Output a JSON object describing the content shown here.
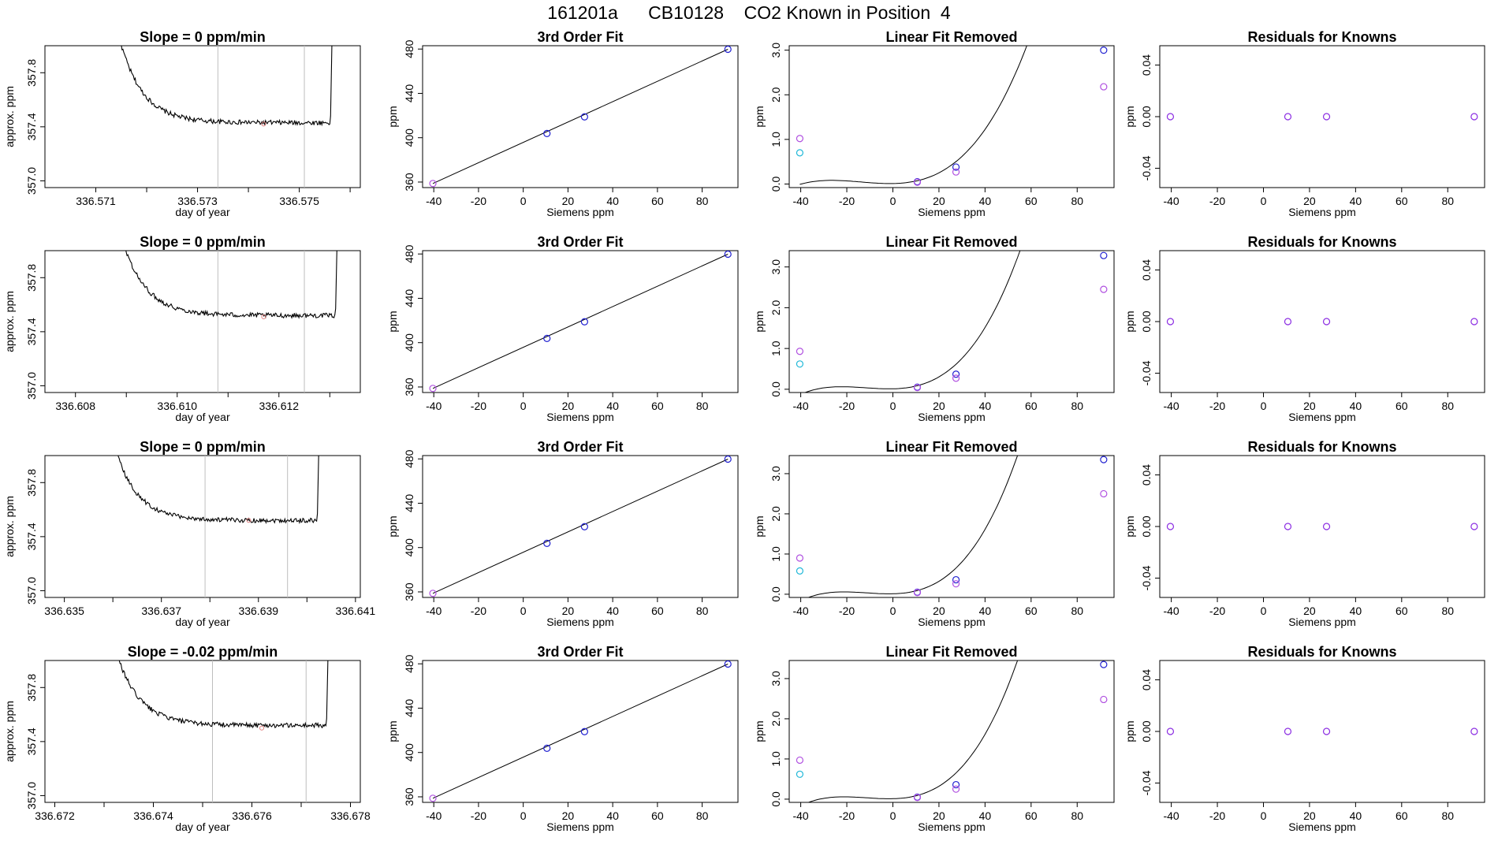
{
  "title": "161201a      CB10128    CO2 Known in Position  4",
  "colors": {
    "trace": "#000000",
    "vline": "#bebebe",
    "fit_line": "#000000",
    "blue": "#2020d0",
    "violet": "#b050e0",
    "cyan": "#20b8d8",
    "resid": "#8a2be2",
    "highlight": "#e08080"
  },
  "chart_data": [
    {
      "row": 1,
      "trace": {
        "type": "line",
        "title": "Slope =  0  ppm/min",
        "xlabel": "day of year",
        "ylabel": "approx. ppm",
        "xlim": [
          336.57,
          336.5762
        ],
        "ylim": [
          356.95,
          358.0
        ],
        "xticks": [
          336.571,
          336.572,
          336.573,
          336.574,
          336.575,
          336.576
        ],
        "xtick_labels": [
          "336.571",
          "",
          "336.573",
          "",
          "336.575",
          ""
        ],
        "yticks": [
          357.0,
          357.4,
          357.8
        ],
        "ytick_labels": [
          "357.0",
          "357.4",
          "357.8"
        ],
        "vlines": [
          336.5734,
          336.5751
        ],
        "t_start": 336.5711,
        "t_end": 336.5756,
        "plateau": 357.43,
        "marker": [
          336.5743,
          357.42
        ]
      },
      "fit": {
        "type": "scatter",
        "title": "3rd Order Fit",
        "xlabel": "Siemens ppm",
        "ylabel": "ppm",
        "xlim": [
          -45,
          96
        ],
        "ylim": [
          355,
          483
        ],
        "xticks": [
          -40,
          -20,
          0,
          20,
          40,
          60,
          80
        ],
        "yticks": [
          360,
          400,
          440,
          480
        ],
        "points": [
          {
            "x": -40.4,
            "y": 358.7,
            "color": "violet"
          },
          {
            "x": 10.6,
            "y": 403.8,
            "color": "blue"
          },
          {
            "x": 27.4,
            "y": 418.8,
            "color": "blue"
          },
          {
            "x": 91.5,
            "y": 479.8,
            "color": "blue"
          }
        ]
      },
      "linfit": {
        "type": "scatter",
        "title": "Linear Fit Removed",
        "xlabel": "Siemens ppm",
        "ylabel": "ppm",
        "xlim": [
          -45,
          96
        ],
        "ylim": [
          -0.08,
          3.1
        ],
        "xticks": [
          -40,
          -20,
          0,
          20,
          40,
          60,
          80
        ],
        "yticks": [
          0.0,
          1.0,
          2.0,
          3.0
        ],
        "ytick_labels": [
          "0.0",
          "1.0",
          "2.0",
          "3.0"
        ],
        "curve": {
          "a": 0.00034,
          "b": 0.0009,
          "vertex": -1.3
        },
        "points": [
          {
            "x": -40.4,
            "y": 1.02,
            "color": "violet"
          },
          {
            "x": -40.4,
            "y": 0.7,
            "color": "cyan"
          },
          {
            "x": 10.6,
            "y": 0.05,
            "color": "blue"
          },
          {
            "x": 10.6,
            "y": 0.04,
            "color": "violet"
          },
          {
            "x": 27.4,
            "y": 0.38,
            "color": "blue"
          },
          {
            "x": 27.4,
            "y": 0.27,
            "color": "violet"
          },
          {
            "x": 91.5,
            "y": 3.0,
            "color": "blue"
          },
          {
            "x": 91.5,
            "y": 2.18,
            "color": "violet"
          }
        ]
      },
      "resid": {
        "type": "scatter",
        "title": "Residuals for Knowns",
        "xlabel": "Siemens ppm",
        "ylabel": "ppm",
        "xlim": [
          -45,
          96
        ],
        "ylim": [
          -0.055,
          0.055
        ],
        "xticks": [
          -40,
          -20,
          0,
          20,
          40,
          60,
          80
        ],
        "yticks": [
          -0.04,
          0.0,
          0.04
        ],
        "ytick_labels": [
          "-0.04",
          "0.00",
          "0.04"
        ],
        "points": [
          {
            "x": -40.4,
            "y": 0.0,
            "color": "resid"
          },
          {
            "x": 10.6,
            "y": 0.0,
            "color": "resid"
          },
          {
            "x": 27.4,
            "y": 0.0,
            "color": "resid"
          },
          {
            "x": 91.5,
            "y": 0.0,
            "color": "resid"
          }
        ]
      }
    },
    {
      "row": 2,
      "trace": {
        "type": "line",
        "title": "Slope =  0  ppm/min",
        "xlabel": "day of year",
        "ylabel": "approx. ppm",
        "xlim": [
          336.6074,
          336.6136
        ],
        "ylim": [
          356.95,
          358.0
        ],
        "xticks": [
          336.608,
          336.609,
          336.61,
          336.611,
          336.612,
          336.613
        ],
        "xtick_labels": [
          "336.608",
          "",
          "336.610",
          "",
          "336.612",
          ""
        ],
        "yticks": [
          357.0,
          357.4,
          357.8
        ],
        "ytick_labels": [
          "357.0",
          "357.4",
          "357.8"
        ],
        "vlines": [
          336.6108,
          336.6125
        ],
        "t_start": 336.6085,
        "t_end": 336.6131,
        "plateau": 357.52,
        "marker": [
          336.6117,
          357.51
        ]
      },
      "fit": {
        "type": "scatter",
        "title": "3rd Order Fit",
        "xlabel": "Siemens ppm",
        "ylabel": "ppm",
        "xlim": [
          -45,
          96
        ],
        "ylim": [
          355,
          483
        ],
        "xticks": [
          -40,
          -20,
          0,
          20,
          40,
          60,
          80
        ],
        "yticks": [
          360,
          400,
          440,
          480
        ],
        "points": [
          {
            "x": -40.4,
            "y": 358.7,
            "color": "violet"
          },
          {
            "x": 10.6,
            "y": 403.8,
            "color": "blue"
          },
          {
            "x": 27.4,
            "y": 418.8,
            "color": "blue"
          },
          {
            "x": 91.5,
            "y": 479.8,
            "color": "blue"
          }
        ]
      },
      "linfit": {
        "type": "scatter",
        "title": "Linear Fit Removed",
        "xlabel": "Siemens ppm",
        "ylabel": "ppm",
        "xlim": [
          -45,
          96
        ],
        "ylim": [
          -0.08,
          3.4
        ],
        "xticks": [
          -40,
          -20,
          0,
          20,
          40,
          60,
          80
        ],
        "yticks": [
          0.0,
          1.0,
          2.0,
          3.0
        ],
        "ytick_labels": [
          "0.0",
          "1.0",
          "2.0",
          "3.0"
        ],
        "curve": {
          "a": 0.00037,
          "b": 0.0012,
          "vertex": -1.6
        },
        "points": [
          {
            "x": -40.4,
            "y": 0.93,
            "color": "violet"
          },
          {
            "x": -40.4,
            "y": 0.62,
            "color": "cyan"
          },
          {
            "x": 10.6,
            "y": 0.05,
            "color": "blue"
          },
          {
            "x": 10.6,
            "y": 0.04,
            "color": "violet"
          },
          {
            "x": 27.4,
            "y": 0.37,
            "color": "blue"
          },
          {
            "x": 27.4,
            "y": 0.27,
            "color": "violet"
          },
          {
            "x": 91.5,
            "y": 3.28,
            "color": "blue"
          },
          {
            "x": 91.5,
            "y": 2.45,
            "color": "violet"
          }
        ]
      },
      "resid": {
        "type": "scatter",
        "title": "Residuals for Knowns",
        "xlabel": "Siemens ppm",
        "ylabel": "ppm",
        "xlim": [
          -45,
          96
        ],
        "ylim": [
          -0.055,
          0.055
        ],
        "xticks": [
          -40,
          -20,
          0,
          20,
          40,
          60,
          80
        ],
        "yticks": [
          -0.04,
          0.0,
          0.04
        ],
        "ytick_labels": [
          "-0.04",
          "0.00",
          "0.04"
        ],
        "points": [
          {
            "x": -40.4,
            "y": 0.0,
            "color": "resid"
          },
          {
            "x": 10.6,
            "y": 0.0,
            "color": "resid"
          },
          {
            "x": 27.4,
            "y": 0.0,
            "color": "resid"
          },
          {
            "x": 91.5,
            "y": 0.0,
            "color": "resid"
          }
        ]
      }
    },
    {
      "row": 3,
      "trace": {
        "type": "line",
        "title": "Slope =  0  ppm/min",
        "xlabel": "day of year",
        "ylabel": "approx. ppm",
        "xlim": [
          336.6346,
          336.6411
        ],
        "ylim": [
          356.95,
          358.0
        ],
        "xticks": [
          336.635,
          336.636,
          336.637,
          336.638,
          336.639,
          336.64,
          336.641
        ],
        "xtick_labels": [
          "336.635",
          "",
          "336.637",
          "",
          "336.639",
          "",
          "336.641"
        ],
        "yticks": [
          357.0,
          357.4,
          357.8
        ],
        "ytick_labels": [
          "357.0",
          "357.4",
          "357.8"
        ],
        "vlines": [
          336.6379,
          336.6396
        ],
        "t_start": 336.6356,
        "t_end": 336.6402,
        "plateau": 357.52,
        "marker": [
          336.6388,
          357.52
        ]
      },
      "fit": {
        "type": "scatter",
        "title": "3rd Order Fit",
        "xlabel": "Siemens ppm",
        "ylabel": "ppm",
        "xlim": [
          -45,
          96
        ],
        "ylim": [
          355,
          483
        ],
        "xticks": [
          -40,
          -20,
          0,
          20,
          40,
          60,
          80
        ],
        "yticks": [
          360,
          400,
          440,
          480
        ],
        "points": [
          {
            "x": -40.4,
            "y": 358.7,
            "color": "violet"
          },
          {
            "x": 10.6,
            "y": 403.8,
            "color": "blue"
          },
          {
            "x": 27.4,
            "y": 418.8,
            "color": "blue"
          },
          {
            "x": 91.5,
            "y": 479.8,
            "color": "blue"
          }
        ]
      },
      "linfit": {
        "type": "scatter",
        "title": "Linear Fit Removed",
        "xlabel": "Siemens ppm",
        "ylabel": "ppm",
        "xlim": [
          -45,
          96
        ],
        "ylim": [
          -0.08,
          3.45
        ],
        "xticks": [
          -40,
          -20,
          0,
          20,
          40,
          60,
          80
        ],
        "yticks": [
          0.0,
          1.0,
          2.0,
          3.0
        ],
        "ytick_labels": [
          "0.0",
          "1.0",
          "2.0",
          "3.0"
        ],
        "curve": {
          "a": 0.00038,
          "b": 0.0013,
          "vertex": -1.7
        },
        "points": [
          {
            "x": -40.4,
            "y": 0.9,
            "color": "violet"
          },
          {
            "x": -40.4,
            "y": 0.58,
            "color": "cyan"
          },
          {
            "x": 10.6,
            "y": 0.05,
            "color": "blue"
          },
          {
            "x": 10.6,
            "y": 0.04,
            "color": "violet"
          },
          {
            "x": 27.4,
            "y": 0.36,
            "color": "blue"
          },
          {
            "x": 27.4,
            "y": 0.26,
            "color": "violet"
          },
          {
            "x": 91.5,
            "y": 3.35,
            "color": "blue"
          },
          {
            "x": 91.5,
            "y": 2.5,
            "color": "violet"
          }
        ]
      },
      "resid": {
        "type": "scatter",
        "title": "Residuals for Knowns",
        "xlabel": "Siemens ppm",
        "ylabel": "ppm",
        "xlim": [
          -45,
          96
        ],
        "ylim": [
          -0.055,
          0.055
        ],
        "xticks": [
          -40,
          -20,
          0,
          20,
          40,
          60,
          80
        ],
        "yticks": [
          -0.04,
          0.0,
          0.04
        ],
        "ytick_labels": [
          "-0.04",
          "0.00",
          "0.04"
        ],
        "points": [
          {
            "x": -40.4,
            "y": 0.0,
            "color": "resid"
          },
          {
            "x": 10.6,
            "y": 0.0,
            "color": "resid"
          },
          {
            "x": 27.4,
            "y": 0.0,
            "color": "resid"
          },
          {
            "x": 91.5,
            "y": 0.0,
            "color": "resid"
          }
        ]
      }
    },
    {
      "row": 4,
      "trace": {
        "type": "line",
        "title": "Slope =  -0.02  ppm/min",
        "xlabel": "day of year",
        "ylabel": "approx. ppm",
        "xlim": [
          336.6718,
          336.6782
        ],
        "ylim": [
          356.95,
          358.0
        ],
        "xticks": [
          336.672,
          336.673,
          336.674,
          336.675,
          336.676,
          336.677,
          336.678
        ],
        "xtick_labels": [
          "336.672",
          "",
          "336.674",
          "",
          "336.676",
          "",
          "336.678"
        ],
        "yticks": [
          357.0,
          357.4,
          357.8
        ],
        "ytick_labels": [
          "357.0",
          "357.4",
          "357.8"
        ],
        "vlines": [
          336.6752,
          336.6771
        ],
        "t_start": 336.6728,
        "t_end": 336.6775,
        "plateau": 357.52,
        "marker": [
          336.6762,
          357.5
        ]
      },
      "fit": {
        "type": "scatter",
        "title": "3rd Order Fit",
        "xlabel": "Siemens ppm",
        "ylabel": "ppm",
        "xlim": [
          -45,
          96
        ],
        "ylim": [
          355,
          483
        ],
        "xticks": [
          -40,
          -20,
          0,
          20,
          40,
          60,
          80
        ],
        "yticks": [
          360,
          400,
          440,
          480
        ],
        "points": [
          {
            "x": -40.4,
            "y": 358.7,
            "color": "violet"
          },
          {
            "x": 10.6,
            "y": 403.8,
            "color": "blue"
          },
          {
            "x": 27.4,
            "y": 418.8,
            "color": "blue"
          },
          {
            "x": 91.5,
            "y": 479.8,
            "color": "blue"
          }
        ]
      },
      "linfit": {
        "type": "scatter",
        "title": "Linear Fit Removed",
        "xlabel": "Siemens ppm",
        "ylabel": "ppm",
        "xlim": [
          -45,
          96
        ],
        "ylim": [
          -0.08,
          3.45
        ],
        "xticks": [
          -40,
          -20,
          0,
          20,
          40,
          60,
          80
        ],
        "yticks": [
          0.0,
          1.0,
          2.0,
          3.0
        ],
        "ytick_labels": [
          "0.0",
          "1.0",
          "2.0",
          "3.0"
        ],
        "curve": {
          "a": 0.00038,
          "b": 0.0013,
          "vertex": -1.7
        },
        "points": [
          {
            "x": -40.4,
            "y": 0.97,
            "color": "violet"
          },
          {
            "x": -40.4,
            "y": 0.62,
            "color": "cyan"
          },
          {
            "x": 10.6,
            "y": 0.05,
            "color": "blue"
          },
          {
            "x": 10.6,
            "y": 0.04,
            "color": "violet"
          },
          {
            "x": 27.4,
            "y": 0.36,
            "color": "blue"
          },
          {
            "x": 27.4,
            "y": 0.25,
            "color": "violet"
          },
          {
            "x": 91.5,
            "y": 3.35,
            "color": "blue"
          },
          {
            "x": 91.5,
            "y": 2.48,
            "color": "violet"
          }
        ]
      },
      "resid": {
        "type": "scatter",
        "title": "Residuals for Knowns",
        "xlabel": "Siemens ppm",
        "ylabel": "ppm",
        "xlim": [
          -45,
          96
        ],
        "ylim": [
          -0.055,
          0.055
        ],
        "xticks": [
          -40,
          -20,
          0,
          20,
          40,
          60,
          80
        ],
        "yticks": [
          -0.04,
          0.0,
          0.04
        ],
        "ytick_labels": [
          "-0.04",
          "0.00",
          "0.04"
        ],
        "points": [
          {
            "x": -40.4,
            "y": 0.0,
            "color": "resid"
          },
          {
            "x": 10.6,
            "y": 0.0,
            "color": "resid"
          },
          {
            "x": 27.4,
            "y": 0.0,
            "color": "resid"
          },
          {
            "x": 91.5,
            "y": 0.0,
            "color": "resid"
          }
        ]
      }
    }
  ]
}
